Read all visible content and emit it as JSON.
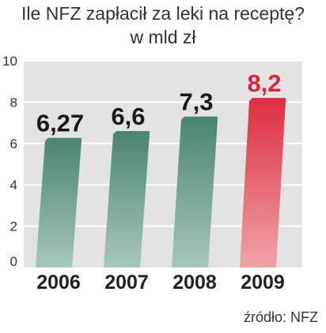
{
  "chart_data": {
    "type": "bar",
    "title": "Ile NFZ zapłacił za leki na receptę?",
    "subtitle": "w mld zł",
    "categories": [
      "2006",
      "2007",
      "2008",
      "2009"
    ],
    "values": [
      6.27,
      6.6,
      7.3,
      8.2
    ],
    "value_labels": [
      "6,27",
      "6,6",
      "7,3",
      "8,2"
    ],
    "yticks": [
      "0",
      "2",
      "4",
      "6",
      "8",
      "10"
    ],
    "ylim": [
      0,
      10
    ],
    "grid": true,
    "highlight_index": 3,
    "source": "źródło: NFZ",
    "colors": {
      "bar": "#4f8a76",
      "bar_highlight": "#e34a5a",
      "value_highlight": "#d7263d",
      "plot_background": "#e3e3e3",
      "gridline": "#ffffff"
    }
  }
}
